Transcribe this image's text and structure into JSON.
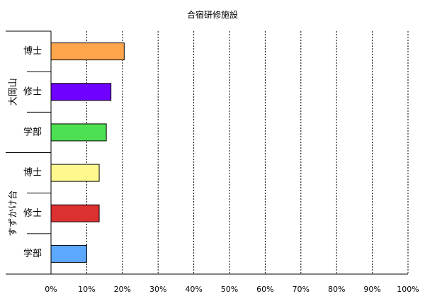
{
  "chart_data": {
    "type": "bar",
    "orientation": "horizontal",
    "title": "合宿研修施設",
    "xlabel": "",
    "ylabel": "",
    "xlim": [
      0,
      100
    ],
    "x_ticks": [
      0,
      10,
      20,
      30,
      40,
      50,
      60,
      70,
      80,
      90,
      100
    ],
    "x_tick_format": "{v}%",
    "grid": "vertical-dashed",
    "groups": [
      {
        "label": "大岡山",
        "items": [
          {
            "label": "博士",
            "value": 20.5,
            "color": "#ffa64d"
          },
          {
            "label": "修士",
            "value": 16.8,
            "color": "#7000ff"
          },
          {
            "label": "学部",
            "value": 15.5,
            "color": "#4ce052"
          }
        ]
      },
      {
        "label": "すずかけ台",
        "items": [
          {
            "label": "博士",
            "value": 13.5,
            "color": "#fff88e"
          },
          {
            "label": "修士",
            "value": 13.5,
            "color": "#dd3030"
          },
          {
            "label": "学部",
            "value": 10.0,
            "color": "#5ca8ff"
          }
        ]
      }
    ]
  }
}
